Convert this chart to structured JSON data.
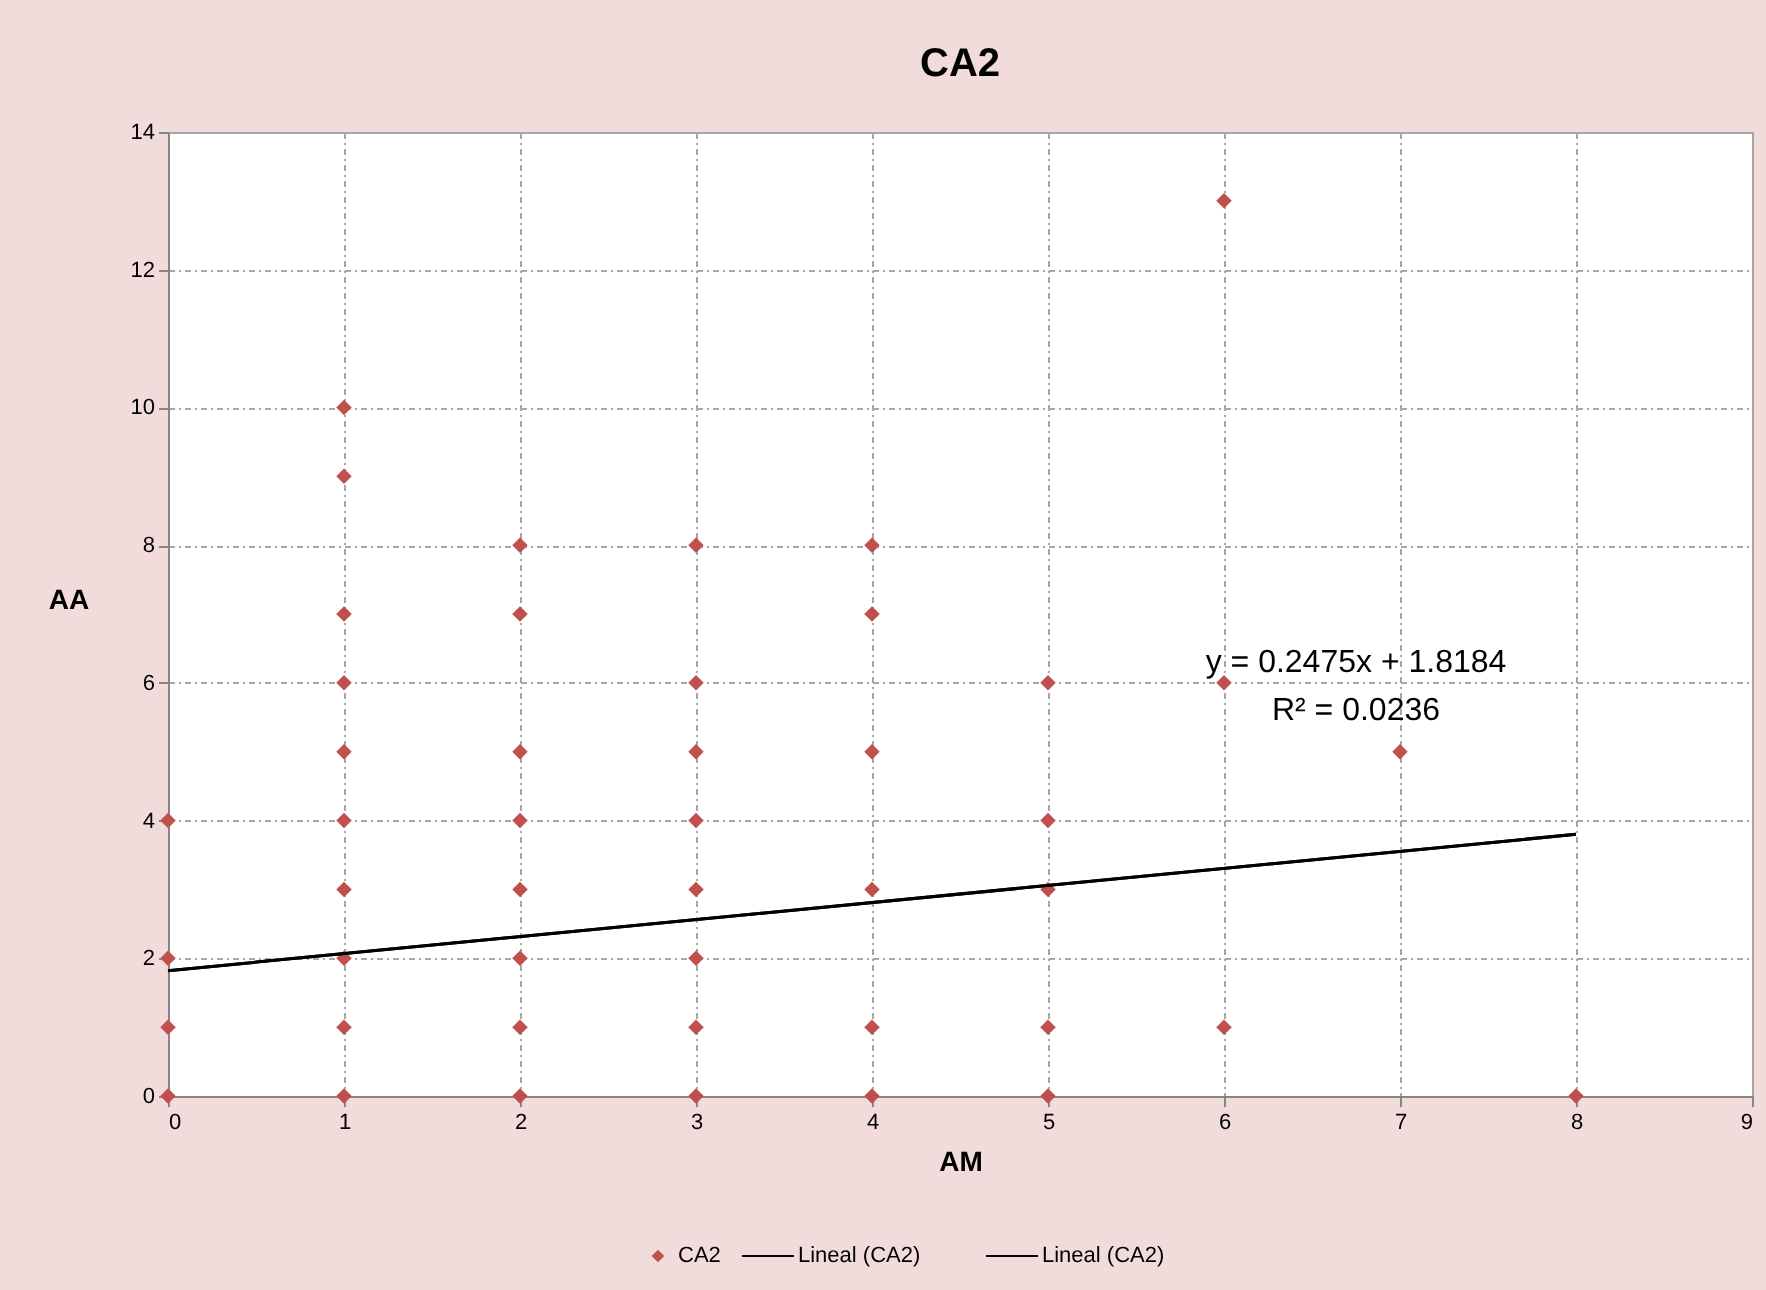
{
  "chart_data": {
    "type": "scatter",
    "title": "CA2",
    "xlabel": "AM",
    "ylabel": "AA",
    "xlim": [
      0,
      9
    ],
    "xticks": [
      0,
      1,
      2,
      3,
      4,
      5,
      6,
      7,
      8,
      9
    ],
    "ylim": [
      0,
      14
    ],
    "yticks": [
      0,
      2,
      4,
      6,
      8,
      10,
      12,
      14
    ],
    "grid": true,
    "legend": "bottom",
    "series": [
      {
        "name": "CA2",
        "color": "#c0504d",
        "marker": "diamond",
        "x": [
          0,
          0,
          0,
          0,
          1,
          1,
          1,
          1,
          1,
          1,
          1,
          1,
          1,
          1,
          2,
          2,
          2,
          2,
          2,
          2,
          2,
          2,
          3,
          3,
          3,
          3,
          3,
          3,
          3,
          3,
          4,
          4,
          4,
          4,
          4,
          4,
          5,
          5,
          5,
          5,
          5,
          6,
          6,
          6,
          7,
          8
        ],
        "values": [
          0,
          1,
          2,
          4,
          0,
          1,
          2,
          3,
          4,
          5,
          6,
          7,
          9,
          10,
          0,
          1,
          2,
          3,
          4,
          5,
          7,
          8,
          0,
          1,
          2,
          3,
          4,
          5,
          6,
          8,
          0,
          1,
          3,
          5,
          7,
          8,
          0,
          1,
          3,
          4,
          6,
          1,
          6,
          13,
          5,
          0
        ]
      },
      {
        "name": "Lineal (CA2)",
        "type": "line",
        "color": "#000000",
        "x": [
          0,
          8
        ],
        "values": [
          1.82,
          3.8
        ]
      },
      {
        "name": "Lineal (CA2)",
        "type": "line",
        "color": "#000000",
        "x": [
          0,
          8
        ],
        "values": [
          1.82,
          3.8
        ]
      }
    ],
    "annotations": [
      "y = 0.2475x + 1.8184",
      "R² = 0.0236"
    ]
  }
}
